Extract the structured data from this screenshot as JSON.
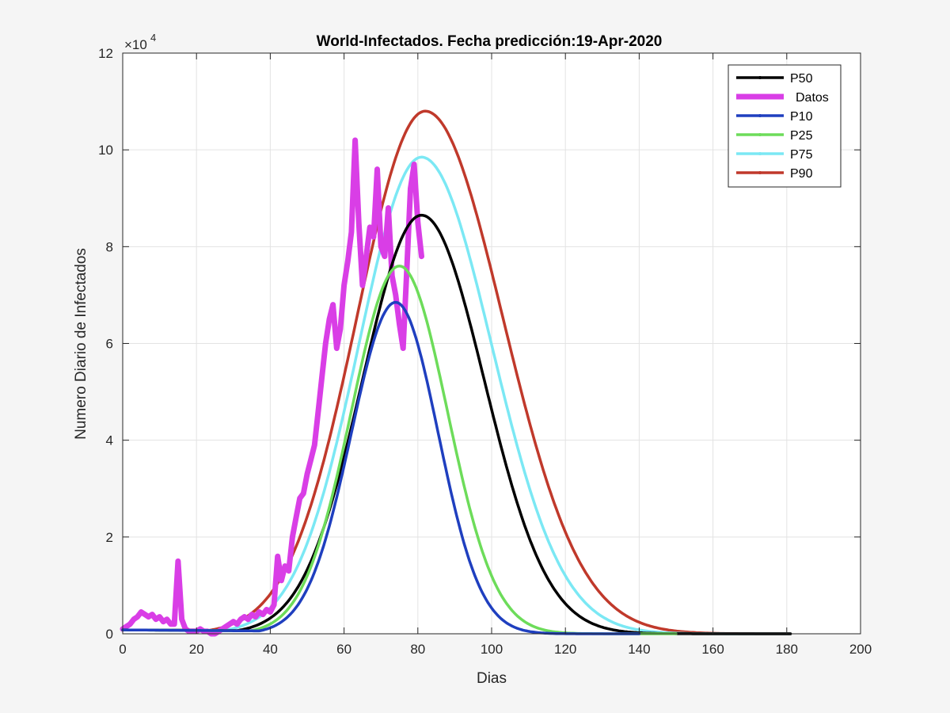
{
  "chart_data": {
    "type": "line",
    "title": "World-Infectados. Fecha predicción:19-Apr-2020",
    "xlabel": "Dias",
    "ylabel": "Numero Diario de Infectados",
    "xlim": [
      0,
      200
    ],
    "ylim": [
      0,
      12
    ],
    "y_multiplier": "×10",
    "y_multiplier_exponent": "4",
    "xticks": [
      0,
      20,
      40,
      60,
      80,
      100,
      120,
      140,
      160,
      180,
      200
    ],
    "yticks": [
      0,
      2,
      4,
      6,
      8,
      10,
      12
    ],
    "grid": true,
    "legend_location": "top-right",
    "series": [
      {
        "name": "P50",
        "color": "#000000",
        "width": 3.5,
        "peak_day": 81,
        "peak": 8.65,
        "sigma_left": 16,
        "sigma_right": 17,
        "end_day": 181
      },
      {
        "name": "Datos",
        "color": "#d93ee6",
        "width": 7,
        "x": [
          0,
          1,
          2,
          3,
          4,
          5,
          6,
          7,
          8,
          9,
          10,
          11,
          12,
          13,
          14,
          15,
          16,
          17,
          18,
          19,
          20,
          21,
          22,
          23,
          24,
          25,
          26,
          27,
          28,
          29,
          30,
          31,
          32,
          33,
          34,
          35,
          36,
          37,
          38,
          39,
          40,
          41,
          42,
          43,
          44,
          45,
          46,
          47,
          48,
          49,
          50,
          51,
          52,
          53,
          54,
          55,
          56,
          57,
          58,
          59,
          60,
          61,
          62,
          63,
          64,
          65,
          66,
          67,
          68,
          69,
          70,
          71,
          72,
          73,
          74,
          75,
          76,
          77,
          78,
          79,
          80,
          81
        ],
        "y": [
          0.1,
          0.15,
          0.2,
          0.3,
          0.35,
          0.45,
          0.4,
          0.35,
          0.4,
          0.3,
          0.35,
          0.25,
          0.3,
          0.2,
          0.2,
          1.5,
          0.3,
          0.1,
          0.05,
          0.05,
          0.05,
          0.1,
          0.05,
          0.05,
          0.0,
          0.0,
          0.05,
          0.1,
          0.15,
          0.2,
          0.25,
          0.2,
          0.3,
          0.35,
          0.3,
          0.4,
          0.35,
          0.45,
          0.4,
          0.5,
          0.45,
          0.6,
          1.6,
          1.1,
          1.4,
          1.3,
          2.0,
          2.4,
          2.8,
          2.9,
          3.3,
          3.6,
          3.9,
          4.6,
          5.3,
          6.0,
          6.5,
          6.8,
          5.9,
          6.3,
          7.2,
          7.7,
          8.3,
          10.2,
          8.5,
          7.2,
          7.8,
          8.4,
          8.2,
          9.6,
          8.0,
          7.8,
          8.8,
          7.4,
          7.0,
          6.4,
          5.9,
          7.5,
          9.2,
          9.7,
          8.5,
          7.8
        ]
      },
      {
        "name": "P10",
        "color": "#1f3fbf",
        "width": 3.5,
        "peak_day": 74,
        "peak": 6.85,
        "sigma_left": 12,
        "sigma_right": 11.5,
        "end_day": 140
      },
      {
        "name": "P25",
        "color": "#6ddc5a",
        "width": 3.5,
        "peak_day": 75,
        "peak": 7.6,
        "sigma_left": 13,
        "sigma_right": 13,
        "end_day": 150
      },
      {
        "name": "P75",
        "color": "#7be8f4",
        "width": 3.5,
        "peak_day": 81,
        "peak": 9.85,
        "sigma_left": 17,
        "sigma_right": 19,
        "end_day": 181
      },
      {
        "name": "P90",
        "color": "#c0392b",
        "width": 3.5,
        "peak_day": 82,
        "peak": 10.8,
        "sigma_left": 18.5,
        "sigma_right": 21,
        "end_day": 181
      }
    ]
  }
}
